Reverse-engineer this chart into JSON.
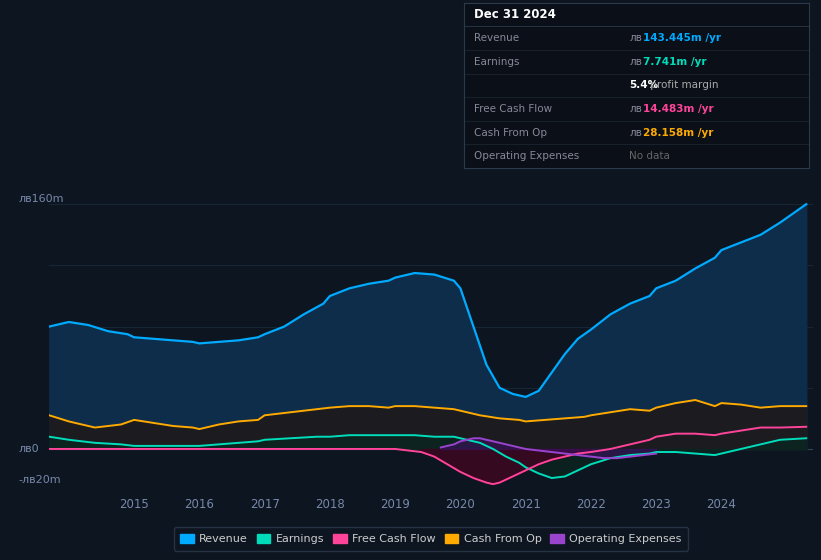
{
  "bg_color": "#0d1520",
  "plot_bg_color": "#0d1520",
  "grid_color": "#1a2a3a",
  "axis_label_color": "#7788aa",
  "ylim": [
    -25,
    180
  ],
  "xlim_start": 2013.7,
  "xlim_end": 2025.4,
  "xticks": [
    2015,
    2016,
    2017,
    2018,
    2019,
    2020,
    2021,
    2022,
    2023,
    2024
  ],
  "revenue": {
    "color": "#00aaff",
    "fill_color": "#0d2d4a",
    "x": [
      2013.7,
      2014.0,
      2014.3,
      2014.6,
      2014.9,
      2015.0,
      2015.3,
      2015.6,
      2015.9,
      2016.0,
      2016.3,
      2016.6,
      2016.9,
      2017.0,
      2017.3,
      2017.6,
      2017.9,
      2018.0,
      2018.3,
      2018.6,
      2018.9,
      2019.0,
      2019.3,
      2019.6,
      2019.9,
      2020.0,
      2020.2,
      2020.4,
      2020.6,
      2020.8,
      2021.0,
      2021.2,
      2021.4,
      2021.6,
      2021.8,
      2022.0,
      2022.3,
      2022.6,
      2022.9,
      2023.0,
      2023.3,
      2023.6,
      2023.9,
      2024.0,
      2024.3,
      2024.6,
      2024.9,
      2025.3
    ],
    "y": [
      80,
      83,
      81,
      77,
      75,
      73,
      72,
      71,
      70,
      69,
      70,
      71,
      73,
      75,
      80,
      88,
      95,
      100,
      105,
      108,
      110,
      112,
      115,
      114,
      110,
      105,
      80,
      55,
      40,
      36,
      34,
      38,
      50,
      62,
      72,
      78,
      88,
      95,
      100,
      105,
      110,
      118,
      125,
      130,
      135,
      140,
      148,
      160
    ]
  },
  "cash_from_op": {
    "color": "#ffaa00",
    "fill_color": "#1a1800",
    "x": [
      2013.7,
      2014.0,
      2014.4,
      2014.8,
      2015.0,
      2015.3,
      2015.6,
      2015.9,
      2016.0,
      2016.3,
      2016.6,
      2016.9,
      2017.0,
      2017.4,
      2017.8,
      2018.0,
      2018.3,
      2018.6,
      2018.9,
      2019.0,
      2019.3,
      2019.6,
      2019.9,
      2020.0,
      2020.3,
      2020.6,
      2020.9,
      2021.0,
      2021.3,
      2021.6,
      2021.9,
      2022.0,
      2022.3,
      2022.6,
      2022.9,
      2023.0,
      2023.3,
      2023.6,
      2023.9,
      2024.0,
      2024.3,
      2024.6,
      2024.9,
      2025.3
    ],
    "y": [
      22,
      18,
      14,
      16,
      19,
      17,
      15,
      14,
      13,
      16,
      18,
      19,
      22,
      24,
      26,
      27,
      28,
      28,
      27,
      28,
      28,
      27,
      26,
      25,
      22,
      20,
      19,
      18,
      19,
      20,
      21,
      22,
      24,
      26,
      25,
      27,
      30,
      32,
      28,
      30,
      29,
      27,
      28,
      28
    ]
  },
  "earnings": {
    "color": "#00ddbb",
    "fill_color": "#0a2520",
    "x": [
      2013.7,
      2014.0,
      2014.4,
      2014.8,
      2015.0,
      2015.3,
      2015.6,
      2015.9,
      2016.0,
      2016.3,
      2016.6,
      2016.9,
      2017.0,
      2017.4,
      2017.8,
      2018.0,
      2018.3,
      2018.6,
      2018.9,
      2019.0,
      2019.3,
      2019.6,
      2019.9,
      2020.0,
      2020.3,
      2020.5,
      2020.7,
      2020.9,
      2021.0,
      2021.2,
      2021.4,
      2021.6,
      2021.8,
      2022.0,
      2022.3,
      2022.6,
      2022.9,
      2023.0,
      2023.3,
      2023.6,
      2023.9,
      2024.0,
      2024.3,
      2024.6,
      2024.9,
      2025.3
    ],
    "y": [
      8,
      6,
      4,
      3,
      2,
      2,
      2,
      2,
      2,
      3,
      4,
      5,
      6,
      7,
      8,
      8,
      9,
      9,
      9,
      9,
      9,
      8,
      8,
      7,
      4,
      0,
      -5,
      -9,
      -12,
      -16,
      -19,
      -18,
      -14,
      -10,
      -6,
      -4,
      -3,
      -2,
      -2,
      -3,
      -4,
      -3,
      0,
      3,
      6,
      7
    ]
  },
  "free_cash_flow": {
    "color": "#ff4499",
    "fill_color": "#3a0820",
    "x": [
      2013.7,
      2019.0,
      2019.4,
      2019.6,
      2019.8,
      2020.0,
      2020.2,
      2020.4,
      2020.5,
      2020.6,
      2020.8,
      2021.0,
      2021.2,
      2021.4,
      2021.6,
      2021.8,
      2022.0,
      2022.3,
      2022.6,
      2022.9,
      2023.0,
      2023.3,
      2023.6,
      2023.9,
      2024.0,
      2024.3,
      2024.6,
      2024.9,
      2025.3
    ],
    "y": [
      0,
      0,
      -2,
      -5,
      -10,
      -15,
      -19,
      -22,
      -23,
      -22,
      -18,
      -14,
      -10,
      -7,
      -5,
      -3,
      -2,
      0,
      3,
      6,
      8,
      10,
      10,
      9,
      10,
      12,
      14,
      14,
      14.5
    ]
  },
  "operating_expenses": {
    "color": "#9944cc",
    "x": [
      2019.7,
      2019.9,
      2020.0,
      2020.1,
      2020.2,
      2020.3,
      2020.4,
      2020.5,
      2020.6,
      2020.7,
      2020.8,
      2020.9,
      2021.0,
      2021.2,
      2021.4,
      2021.6,
      2021.8,
      2022.0,
      2022.2,
      2022.4,
      2022.6,
      2022.8,
      2023.0
    ],
    "y": [
      1,
      3,
      5,
      6,
      7,
      7,
      6,
      5,
      4,
      3,
      2,
      1,
      0,
      -1,
      -2,
      -3,
      -4,
      -5,
      -6,
      -6,
      -5,
      -4,
      -3
    ]
  },
  "legend_entries": [
    {
      "label": "Revenue",
      "color": "#00aaff"
    },
    {
      "label": "Earnings",
      "color": "#00ddbb"
    },
    {
      "label": "Free Cash Flow",
      "color": "#ff4499"
    },
    {
      "label": "Cash From Op",
      "color": "#ffaa00"
    },
    {
      "label": "Operating Expenses",
      "color": "#9944cc"
    }
  ],
  "tooltip": {
    "title": "Dec 31 2024",
    "rows": [
      {
        "label": "Revenue",
        "value_prefix": "лв",
        "value": "143.445m /yr",
        "color": "#00aaff"
      },
      {
        "label": "Earnings",
        "value_prefix": "лв",
        "value": "7.741m /yr",
        "color": "#00ddbb"
      },
      {
        "label": "",
        "value": "5.4% profit margin",
        "bold": "5.4%",
        "color": "#ffffff"
      },
      {
        "label": "Free Cash Flow",
        "value_prefix": "лв",
        "value": "14.483m /yr",
        "color": "#ff4499"
      },
      {
        "label": "Cash From Op",
        "value_prefix": "лв",
        "value": "28.158m /yr",
        "color": "#ffaa00"
      },
      {
        "label": "Operating Expenses",
        "value": "No data",
        "color": "#666666"
      }
    ]
  }
}
